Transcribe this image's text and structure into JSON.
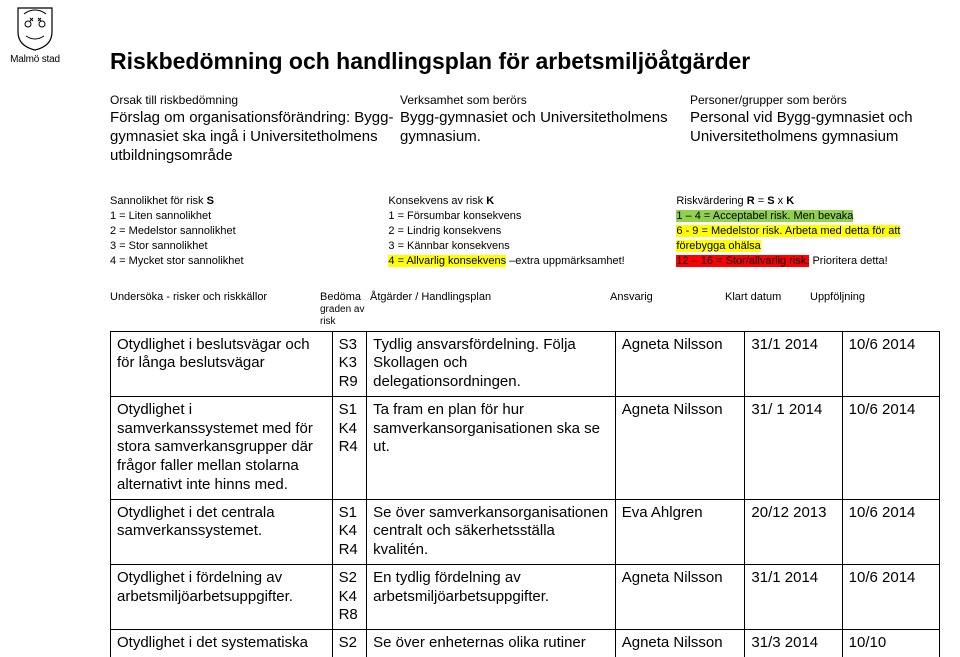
{
  "logo_label": "Malmö stad",
  "title": "Riskbedömning och handlingsplan för arbetsmiljöåtgärder",
  "header_cols": {
    "c1": {
      "head": "Orsak till riskbedömning",
      "body": "Förslag om organisationsförändring: Bygg-gymnasiet ska ingå i Universitetholmens utbildningsområde"
    },
    "c2": {
      "head": "Verksamhet som berörs",
      "body": "Bygg-gymnasiet och Universitetholmens gymnasium."
    },
    "c3": {
      "head": "Personer/grupper som berörs",
      "body": "Personal vid Bygg-gymnasiet och Universitetholmens gymnasium"
    }
  },
  "legend": {
    "l1": {
      "head": "Sannolikhet för risk S",
      "lines": [
        "1 = Liten sannolikhet",
        "2 = Medelstor sannolikhet",
        "3 = Stor sannolikhet",
        "4 = Mycket stor sannolikhet"
      ]
    },
    "l2": {
      "head": "Konsekvens av risk K",
      "lines": [
        "1 = Försumbar konsekvens",
        "2 = Lindrig konsekvens",
        "3 = Kännbar konsekvens"
      ],
      "line4a": "4 = Allvarlig konsekvens",
      "line4b": " –extra uppmärksamhet!"
    },
    "l3": {
      "head": "Riskvärdering R = S x K",
      "line1": "1 – 4 = Acceptabel risk. Men bevaka",
      "line2": "6 - 9 = Medelstor risk. Arbeta med detta för att förebygga ohälsa",
      "line3a": "12 – 16 = Stor/allvarlig risk.",
      "line3b": " Prioritera detta!"
    }
  },
  "table": {
    "heads": {
      "h1": "Undersöka - risker och riskkällor",
      "h2": "Bedöma",
      "h2b": "graden av risk",
      "h3": "Åtgärder / Handlingsplan",
      "h4": "Ansvarig",
      "h5": "Klart datum",
      "h6": "Uppföljning"
    },
    "rows": [
      {
        "c1": "Otydlighet i beslutsvägar och för långa beslutsvägar",
        "c2": "S3\nK3\nR9",
        "c3": "Tydlig ansvarsfördelning. Följa Skollagen och delegationsordningen.",
        "c4": "Agneta Nilsson",
        "c5": "31/1 2014",
        "c6": "10/6  2014"
      },
      {
        "c1": "Otydlighet i samverkanssystemet med för stora samverkansgrupper där frågor faller mellan stolarna alternativt inte hinns med.",
        "c2": "S1\nK4\nR4",
        "c3": "Ta fram en plan för hur samverkansorganisationen ska se ut.",
        "c4": "Agneta Nilsson",
        "c5": "31/ 1 2014",
        "c6": "10/6 2014"
      },
      {
        "c1": "Otydlighet i det centrala samverkanssystemet.",
        "c2": "S1\nK4\nR4",
        "c3": "Se över samverkansorganisationen centralt och säkerhetsställa kvalitén.",
        "c4": "Eva Ahlgren",
        "c5": "20/12 2013",
        "c6": "10/6 2014"
      },
      {
        "c1": "Otydlighet i fördelning av arbetsmiljöarbetsuppgifter.",
        "c2": "S2\nK4\nR8",
        "c3": "En tydlig fördelning av arbetsmiljöarbetsuppgifter.",
        "c4": "Agneta Nilsson",
        "c5": "31/1 2014",
        "c6": "10/6 2014"
      },
      {
        "c1": "Otydlighet i det systematiska",
        "c2": "S2",
        "c3": "Se över enheternas olika rutiner",
        "c4": "Agneta Nilsson",
        "c5": "31/3 2014",
        "c6": "10/10"
      }
    ]
  }
}
